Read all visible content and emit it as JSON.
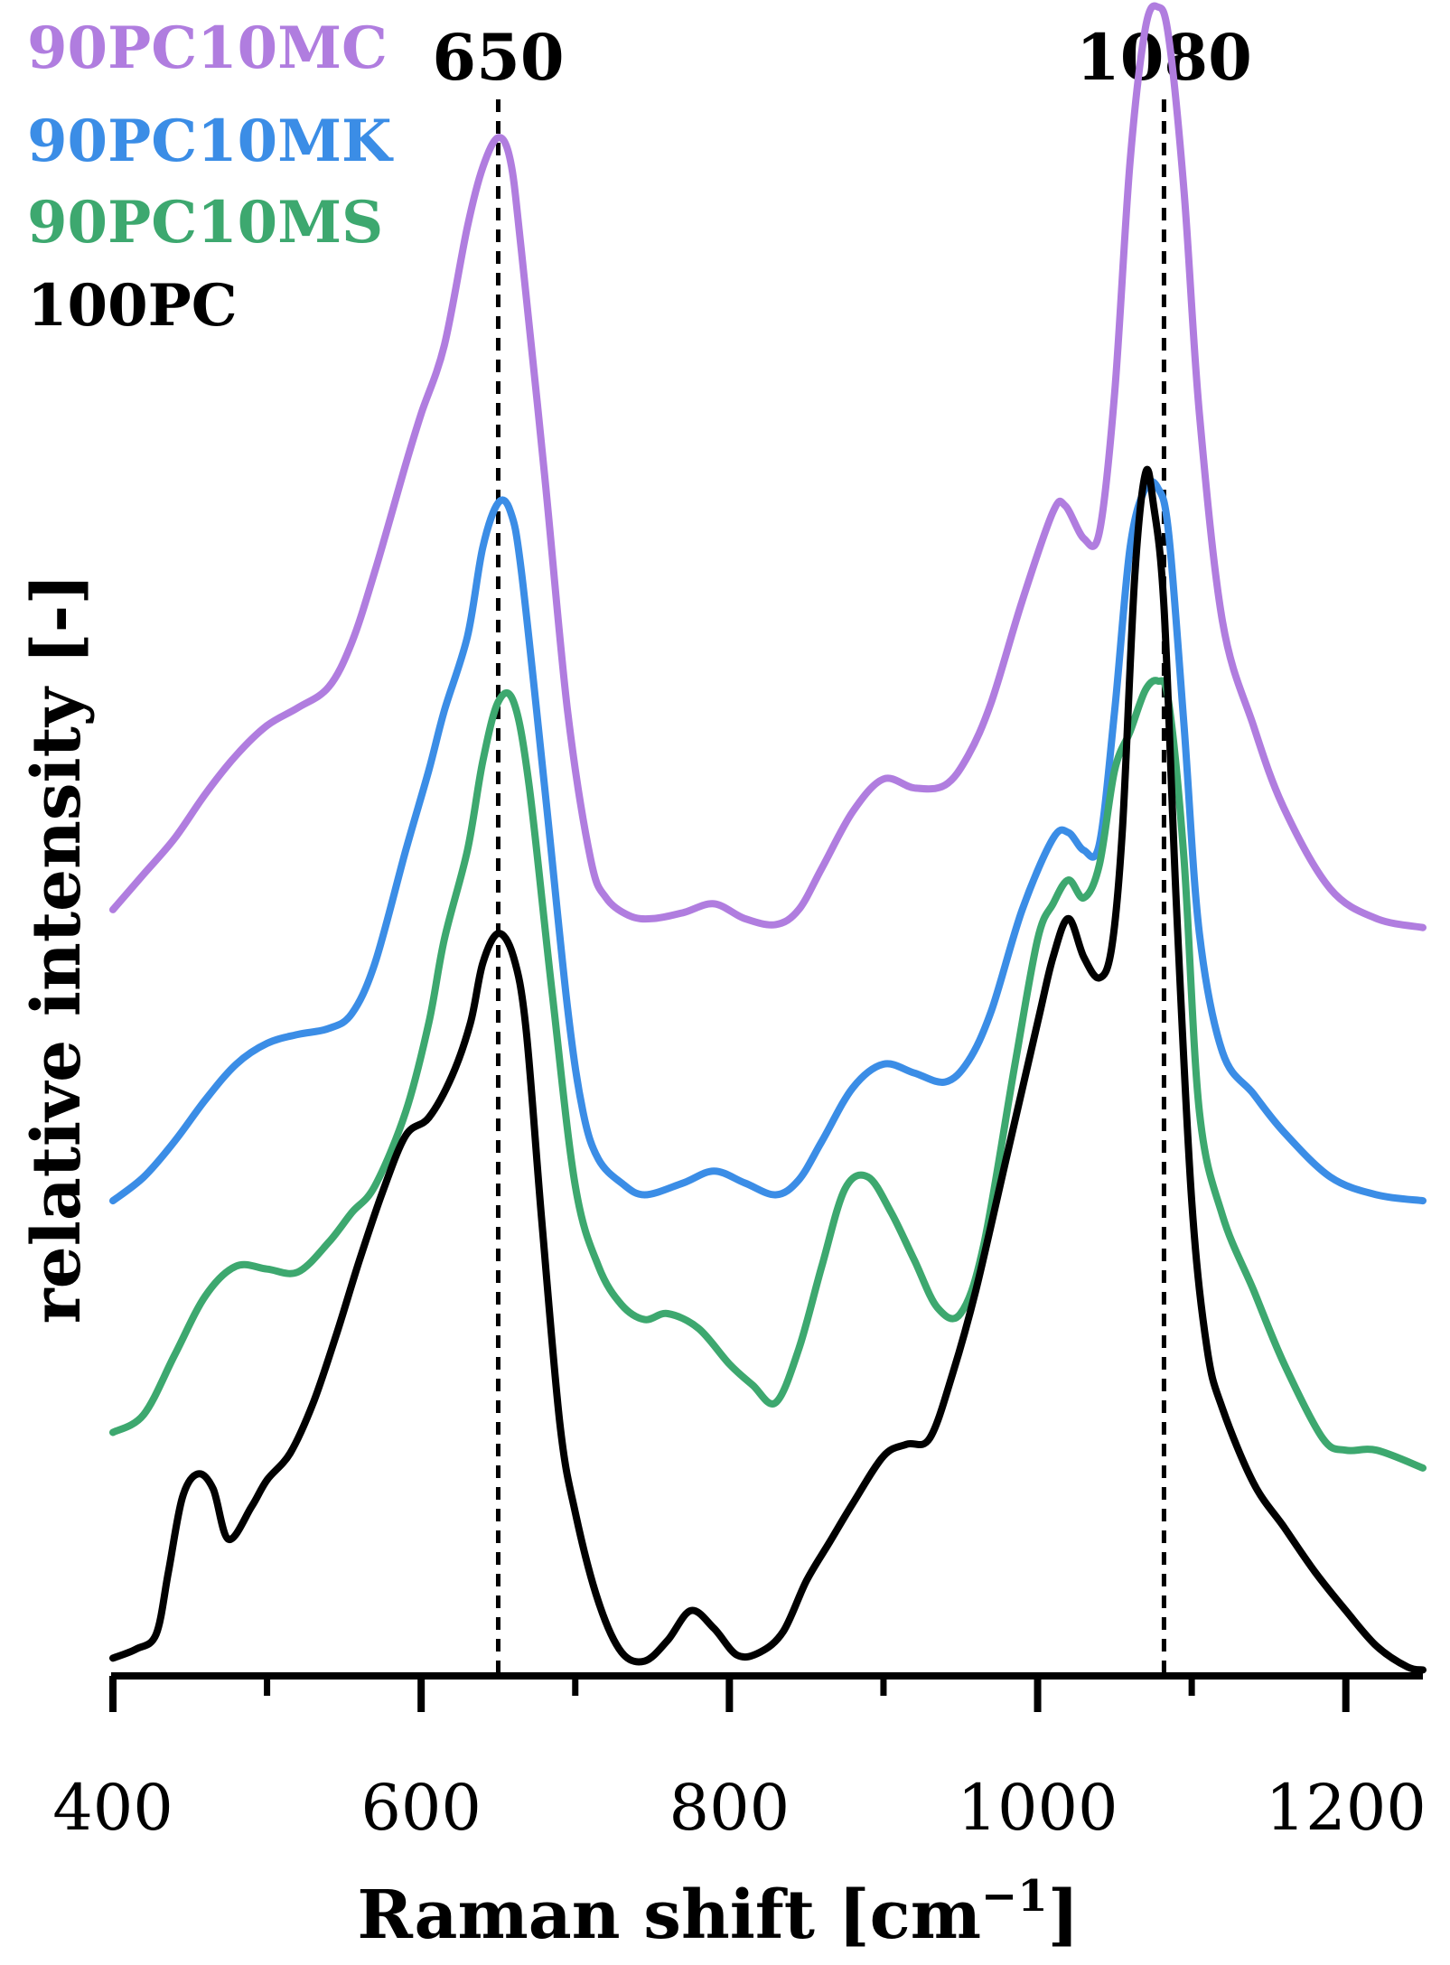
{
  "chart_data": {
    "type": "line",
    "title": "",
    "xlabel": "Raman shift [cm",
    "xlabel_sup": "−1",
    "xlabel_end": "]",
    "ylabel": "relative intensity [-]",
    "xlim": [
      400,
      1250
    ],
    "ylim": [
      0,
      5.4
    ],
    "x_ticks": [
      400,
      600,
      800,
      1000,
      1200
    ],
    "x_tick_labels": [
      "400",
      "600",
      "800",
      "1000",
      "1200"
    ],
    "x_minor_ticks": [
      500,
      700,
      900,
      1100
    ],
    "grid": false,
    "legend_position": "top-left",
    "reference_lines": [
      {
        "x": 650,
        "label": "650"
      },
      {
        "x": 1082,
        "label": "1080"
      }
    ],
    "series": [
      {
        "name": "90PC10MC",
        "color": "#b07ddf",
        "x": [
          400,
          420,
          440,
          460,
          480,
          500,
          520,
          540,
          555,
          570,
          590,
          600,
          615,
          630,
          640,
          650,
          658,
          665,
          680,
          695,
          710,
          720,
          735,
          750,
          770,
          790,
          810,
          830,
          845,
          860,
          880,
          900,
          920,
          940,
          955,
          970,
          990,
          1010,
          1018,
          1030,
          1040,
          1050,
          1060,
          1070,
          1078,
          1085,
          1095,
          1105,
          1120,
          1140,
          1160,
          1190,
          1220,
          1250
        ],
        "y": [
          2.58,
          2.7,
          2.82,
          2.97,
          3.1,
          3.2,
          3.26,
          3.33,
          3.48,
          3.72,
          4.08,
          4.25,
          4.48,
          4.88,
          5.08,
          5.18,
          5.1,
          4.8,
          4.05,
          3.25,
          2.75,
          2.62,
          2.56,
          2.55,
          2.57,
          2.6,
          2.55,
          2.53,
          2.58,
          2.72,
          2.91,
          3.02,
          2.99,
          3.0,
          3.1,
          3.28,
          3.62,
          3.92,
          3.94,
          3.83,
          3.85,
          4.32,
          5.1,
          5.55,
          5.62,
          5.52,
          5.0,
          4.25,
          3.55,
          3.2,
          2.92,
          2.65,
          2.55,
          2.52
        ]
      },
      {
        "name": "90PC10MK",
        "color": "#3b8de6",
        "x": [
          400,
          420,
          440,
          460,
          480,
          500,
          520,
          540,
          555,
          570,
          590,
          605,
          615,
          630,
          640,
          650,
          658,
          665,
          680,
          695,
          705,
          715,
          730,
          745,
          770,
          790,
          810,
          830,
          845,
          860,
          880,
          900,
          920,
          940,
          955,
          970,
          990,
          1010,
          1020,
          1030,
          1040,
          1050,
          1060,
          1070,
          1078,
          1085,
          1095,
          1105,
          1120,
          1140,
          1160,
          1190,
          1220,
          1250
        ],
        "y": [
          1.6,
          1.68,
          1.8,
          1.94,
          2.06,
          2.13,
          2.16,
          2.18,
          2.23,
          2.4,
          2.78,
          3.05,
          3.25,
          3.5,
          3.8,
          3.95,
          3.92,
          3.72,
          3.0,
          2.25,
          1.9,
          1.74,
          1.66,
          1.62,
          1.66,
          1.7,
          1.66,
          1.62,
          1.67,
          1.8,
          1.98,
          2.06,
          2.03,
          2.0,
          2.07,
          2.24,
          2.58,
          2.82,
          2.84,
          2.78,
          2.8,
          3.25,
          3.8,
          4.0,
          4.0,
          3.85,
          3.2,
          2.5,
          2.1,
          1.96,
          1.83,
          1.68,
          1.62,
          1.6
        ]
      },
      {
        "name": "90PC10MS",
        "color": "#3da86f",
        "x": [
          400,
          420,
          440,
          460,
          480,
          500,
          520,
          540,
          555,
          570,
          590,
          605,
          615,
          630,
          640,
          650,
          660,
          670,
          685,
          700,
          715,
          730,
          745,
          760,
          780,
          800,
          815,
          830,
          845,
          860,
          875,
          890,
          905,
          920,
          935,
          950,
          965,
          985,
          1000,
          1010,
          1020,
          1030,
          1040,
          1050,
          1060,
          1070,
          1078,
          1085,
          1095,
          1105,
          1120,
          1140,
          1160,
          1185,
          1200,
          1220,
          1250
        ],
        "y": [
          0.82,
          0.88,
          1.08,
          1.28,
          1.38,
          1.37,
          1.36,
          1.46,
          1.56,
          1.65,
          1.9,
          2.2,
          2.48,
          2.78,
          3.08,
          3.28,
          3.28,
          3.0,
          2.3,
          1.65,
          1.38,
          1.25,
          1.2,
          1.22,
          1.17,
          1.05,
          0.98,
          0.92,
          1.1,
          1.38,
          1.64,
          1.68,
          1.56,
          1.4,
          1.24,
          1.22,
          1.45,
          2.05,
          2.48,
          2.6,
          2.68,
          2.62,
          2.73,
          3.05,
          3.18,
          3.32,
          3.35,
          3.28,
          2.75,
          1.9,
          1.55,
          1.3,
          1.05,
          0.8,
          0.76,
          0.76,
          0.7
        ]
      },
      {
        "name": "100PC",
        "color": "#000000",
        "x": [
          400,
          415,
          428,
          436,
          445,
          455,
          465,
          475,
          490,
          500,
          515,
          530,
          545,
          560,
          575,
          590,
          605,
          620,
          632,
          640,
          650,
          660,
          668,
          678,
          690,
          700,
          715,
          730,
          745,
          760,
          775,
          790,
          805,
          820,
          835,
          850,
          865,
          880,
          900,
          915,
          930,
          945,
          960,
          980,
          1000,
          1010,
          1020,
          1030,
          1040,
          1048,
          1055,
          1063,
          1070,
          1075,
          1082,
          1090,
          1100,
          1110,
          1120,
          1140,
          1160,
          1180,
          1200,
          1220,
          1240,
          1250
        ],
        "y": [
          0.06,
          0.09,
          0.14,
          0.35,
          0.6,
          0.68,
          0.63,
          0.46,
          0.57,
          0.66,
          0.75,
          0.92,
          1.15,
          1.4,
          1.63,
          1.82,
          1.88,
          2.02,
          2.2,
          2.4,
          2.5,
          2.42,
          2.18,
          1.55,
          0.85,
          0.55,
          0.25,
          0.08,
          0.05,
          0.12,
          0.22,
          0.16,
          0.07,
          0.08,
          0.15,
          0.32,
          0.45,
          0.58,
          0.74,
          0.78,
          0.8,
          1.02,
          1.3,
          1.75,
          2.2,
          2.42,
          2.55,
          2.42,
          2.35,
          2.45,
          2.85,
          3.7,
          4.05,
          3.95,
          3.6,
          2.6,
          1.6,
          1.1,
          0.9,
          0.65,
          0.5,
          0.35,
          0.22,
          0.1,
          0.03,
          0.02
        ]
      }
    ]
  },
  "legend": {
    "items": [
      {
        "label": "90PC10MC",
        "color": "#b07ddf"
      },
      {
        "label": "90PC10MK",
        "color": "#3b8de6"
      },
      {
        "label": "90PC10MS",
        "color": "#3da86f"
      },
      {
        "label": "100PC",
        "color": "#000000"
      }
    ]
  }
}
